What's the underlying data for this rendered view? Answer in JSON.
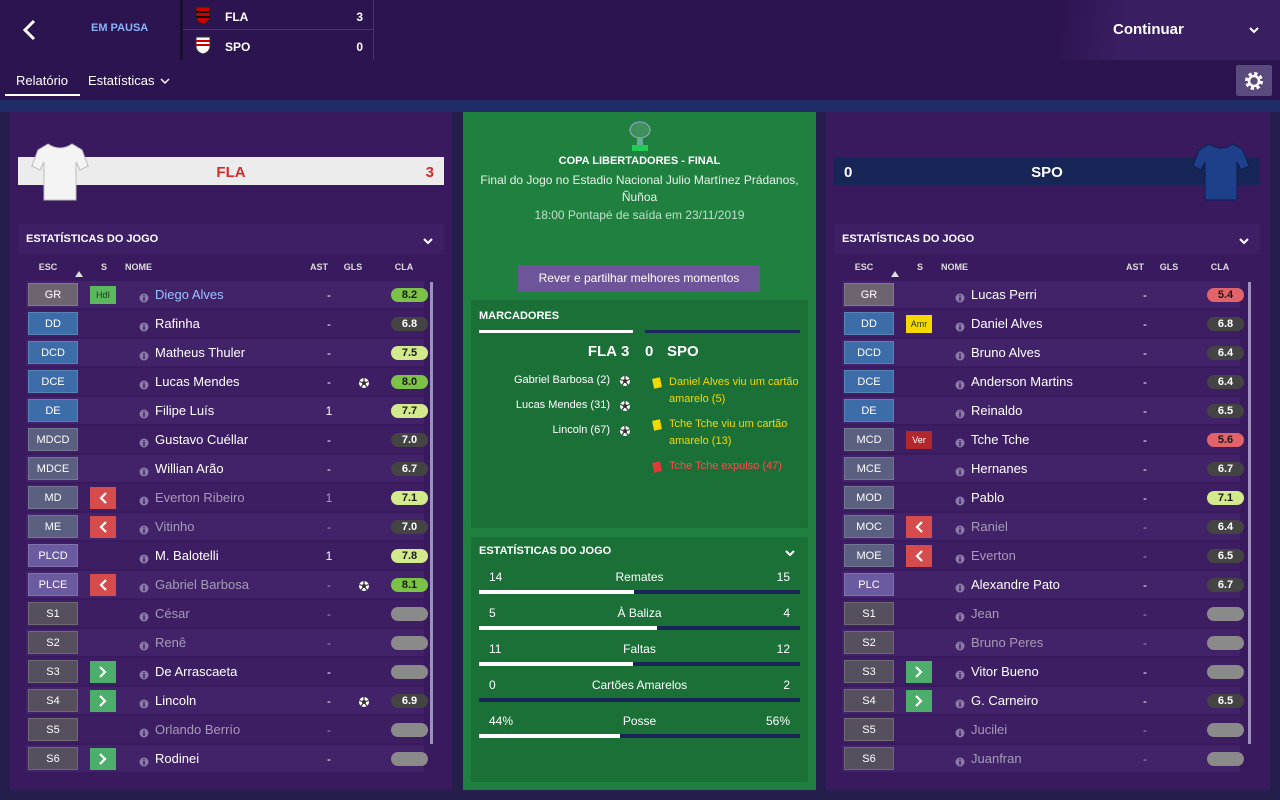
{
  "header": {
    "status": "EM PAUSA",
    "scoreboard": [
      {
        "team": "FLA",
        "score": 3
      },
      {
        "team": "SPO",
        "score": 0
      }
    ],
    "continue": "Continuar"
  },
  "tabs": [
    "Relatório",
    "Estatísticas"
  ],
  "home": {
    "team": "FLA",
    "score": 3,
    "stats_title": "ESTATÍSTICAS DO JOGO",
    "columns": [
      "ESC",
      "S",
      "NOME",
      "AST",
      "GLS",
      "CLA"
    ],
    "players": [
      {
        "pos": "GR",
        "status": "HdI",
        "name": "Diego Alves",
        "ast": "-",
        "rating": "8.2"
      },
      {
        "pos": "DD",
        "name": "Rafinha",
        "ast": "-",
        "rating": "6.8"
      },
      {
        "pos": "DCD",
        "name": "Matheus Thuler",
        "ast": "-",
        "rating": "7.5"
      },
      {
        "pos": "DCE",
        "name": "Lucas Mendes",
        "ast": "-",
        "goal": true,
        "rating": "8.0"
      },
      {
        "pos": "DE",
        "name": "Filipe Luís",
        "ast": "1",
        "rating": "7.7"
      },
      {
        "pos": "MDCD",
        "name": "Gustavo Cuéllar",
        "ast": "-",
        "rating": "7.0"
      },
      {
        "pos": "MDCE",
        "name": "Willian Arão",
        "ast": "-",
        "rating": "6.7"
      },
      {
        "pos": "MD",
        "sub": "off",
        "name": "Everton Ribeiro",
        "ast": "1",
        "rating": "7.1"
      },
      {
        "pos": "ME",
        "sub": "off",
        "name": "Vitinho",
        "ast": "-",
        "rating": "7.0"
      },
      {
        "pos": "PLCD",
        "name": "M. Balotelli",
        "ast": "1",
        "rating": "7.8"
      },
      {
        "pos": "PLCE",
        "sub": "off",
        "name": "Gabriel Barbosa",
        "ast": "-",
        "goal": true,
        "rating": "8.1"
      },
      {
        "pos": "S1",
        "name": "César",
        "ast": "-",
        "rating": "-"
      },
      {
        "pos": "S2",
        "name": "Renê",
        "ast": "-",
        "rating": "-"
      },
      {
        "pos": "S3",
        "sub": "on",
        "name": "De Arrascaeta",
        "ast": "-",
        "rating": "-"
      },
      {
        "pos": "S4",
        "sub": "on",
        "name": "Lincoln",
        "ast": "-",
        "goal": true,
        "rating": "6.9"
      },
      {
        "pos": "S5",
        "name": "Orlando Berrío",
        "ast": "-",
        "rating": "-"
      },
      {
        "pos": "S6",
        "sub": "on",
        "name": "Rodinei",
        "ast": "-",
        "rating": "-"
      }
    ]
  },
  "away": {
    "team": "SPO",
    "score": 0,
    "stats_title": "ESTATÍSTICAS DO JOGO",
    "columns": [
      "ESC",
      "S",
      "NOME",
      "AST",
      "GLS",
      "CLA"
    ],
    "players": [
      {
        "pos": "GR",
        "name": "Lucas Perri",
        "ast": "-",
        "rating": "5.4"
      },
      {
        "pos": "DD",
        "status": "Amr",
        "name": "Daniel Alves",
        "ast": "-",
        "rating": "6.8"
      },
      {
        "pos": "DCD",
        "name": "Bruno Alves",
        "ast": "-",
        "rating": "6.4"
      },
      {
        "pos": "DCE",
        "name": "Anderson Martins",
        "ast": "-",
        "rating": "6.4"
      },
      {
        "pos": "DE",
        "name": "Reinaldo",
        "ast": "-",
        "rating": "6.5"
      },
      {
        "pos": "MCD",
        "status": "Ver",
        "name": "Tche Tche",
        "ast": "-",
        "rating": "5.6"
      },
      {
        "pos": "MCE",
        "name": "Hernanes",
        "ast": "-",
        "rating": "6.7"
      },
      {
        "pos": "MOD",
        "name": "Pablo",
        "ast": "-",
        "rating": "7.1"
      },
      {
        "pos": "MOC",
        "sub": "off",
        "name": "Raniel",
        "ast": "-",
        "rating": "6.4"
      },
      {
        "pos": "MOE",
        "sub": "off",
        "name": "Everton",
        "ast": "-",
        "rating": "6.5"
      },
      {
        "pos": "PLC",
        "name": "Alexandre Pato",
        "ast": "-",
        "rating": "6.7"
      },
      {
        "pos": "S1",
        "name": "Jean",
        "ast": "-",
        "rating": "-"
      },
      {
        "pos": "S2",
        "name": "Bruno Peres",
        "ast": "-",
        "rating": "-"
      },
      {
        "pos": "S3",
        "sub": "on",
        "name": "Vitor Bueno",
        "ast": "-",
        "rating": "-"
      },
      {
        "pos": "S4",
        "sub": "on",
        "name": "G. Carneiro",
        "ast": "-",
        "rating": "6.5"
      },
      {
        "pos": "S5",
        "name": "Jucilei",
        "ast": "-",
        "rating": "-"
      },
      {
        "pos": "S6",
        "name": "Juanfran",
        "ast": "-",
        "rating": "-"
      }
    ]
  },
  "match": {
    "competition": "COPA LIBERTADORES - FINAL",
    "venue": "Final do Jogo no Estadio Nacional Julio Martínez Prádanos, Ñuñoa",
    "kickoff": "18:00 Pontapé de saída em 23/11/2019",
    "highlights_button": "Rever e partilhar melhores momentos",
    "scorers_title": "MARCADORES",
    "home_events": [
      "Gabriel Barbosa (2)",
      "Lucas Mendes (31)",
      "Lincoln (67)"
    ],
    "away_events": [
      {
        "text": "Daniel Alves viu um cartão amarelo (5)",
        "card": "yellow"
      },
      {
        "text": "Tche Tche viu um cartão amarelo (13)",
        "card": "yellow"
      },
      {
        "text": "Tche Tche expulso (47)",
        "card": "red"
      }
    ],
    "stats_title": "ESTATÍSTICAS DO JOGO",
    "stats": [
      {
        "label": "Remates",
        "home": 14,
        "away": 15
      },
      {
        "label": "À Baliza",
        "home": 5,
        "away": 4
      },
      {
        "label": "Faltas",
        "home": 11,
        "away": 12
      },
      {
        "label": "Cartões Amarelos",
        "home": 0,
        "away": 2
      },
      {
        "label": "Posse",
        "home": 44,
        "away": 56,
        "value_labels": {
          "home": "44%",
          "away": "56%"
        }
      }
    ]
  }
}
